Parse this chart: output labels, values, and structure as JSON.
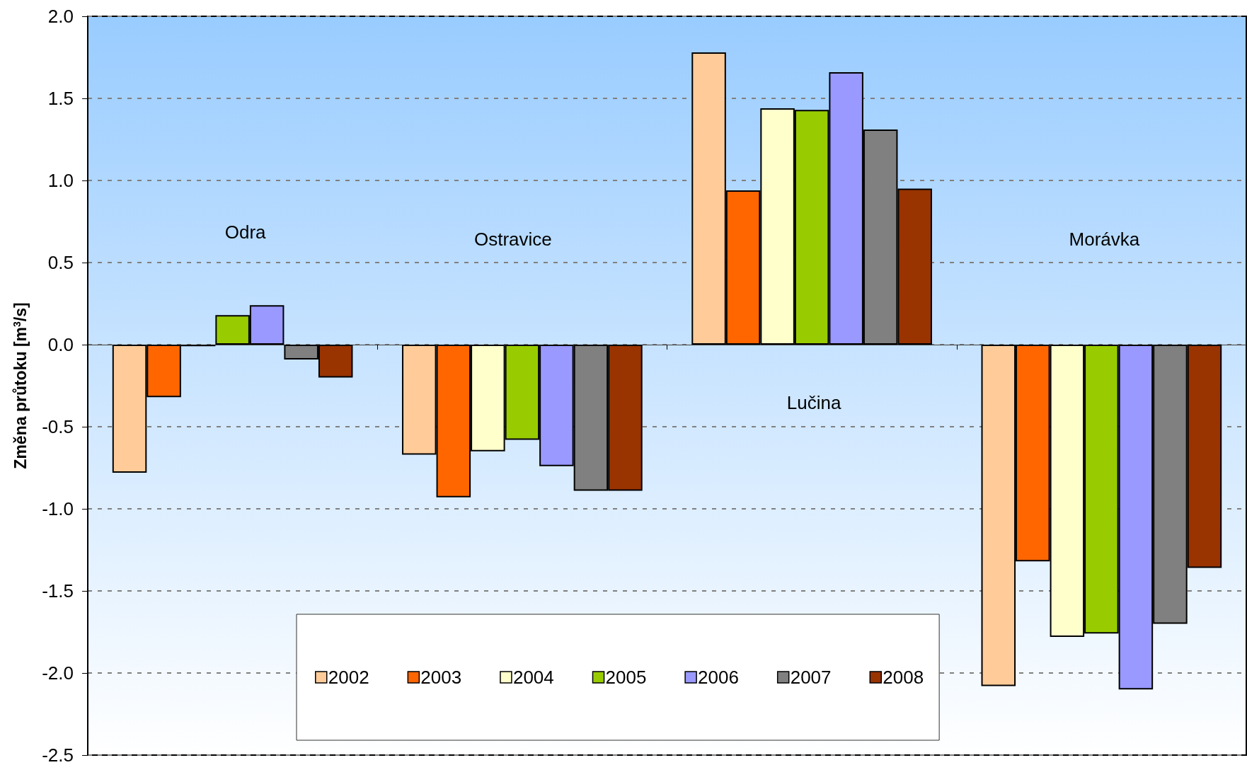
{
  "chart_data": {
    "type": "bar",
    "categories": [
      "Odra",
      "Ostravice",
      "Lučina",
      "Morávka"
    ],
    "series": [
      {
        "name": "2002",
        "color": "#ffcc99",
        "values": [
          -0.78,
          -0.67,
          1.78,
          -2.08
        ]
      },
      {
        "name": "2003",
        "color": "#ff6600",
        "values": [
          -0.32,
          -0.93,
          0.94,
          -1.32
        ]
      },
      {
        "name": "2004",
        "color": "#ffffcc",
        "values": [
          -0.01,
          -0.65,
          1.44,
          -1.78
        ]
      },
      {
        "name": "2005",
        "color": "#99cc00",
        "values": [
          0.18,
          -0.58,
          1.43,
          -1.76
        ]
      },
      {
        "name": "2006",
        "color": "#9999ff",
        "values": [
          0.24,
          -0.74,
          1.66,
          -2.1
        ]
      },
      {
        "name": "2007",
        "color": "#808080",
        "values": [
          -0.09,
          -0.89,
          1.31,
          -1.7
        ]
      },
      {
        "name": "2008",
        "color": "#993300",
        "values": [
          -0.2,
          -0.89,
          0.95,
          -1.36
        ]
      }
    ],
    "ylabel": "Změna průtoku [m$^{3}$/s]",
    "ylim": [
      -2.5,
      2
    ],
    "yticks": [
      -2.5,
      {
        "value": -2,
        "label": "-2.0"
      },
      -1.5,
      {
        "value": -1,
        "label": "-1.0"
      },
      -0.5,
      {
        "value": 0,
        "label": "0.0"
      },
      0.5,
      {
        "value": 1,
        "label": "1.0"
      },
      1.5,
      {
        "value": 2,
        "label": "2.0"
      }
    ],
    "grid": "y",
    "legend": "bottom"
  }
}
